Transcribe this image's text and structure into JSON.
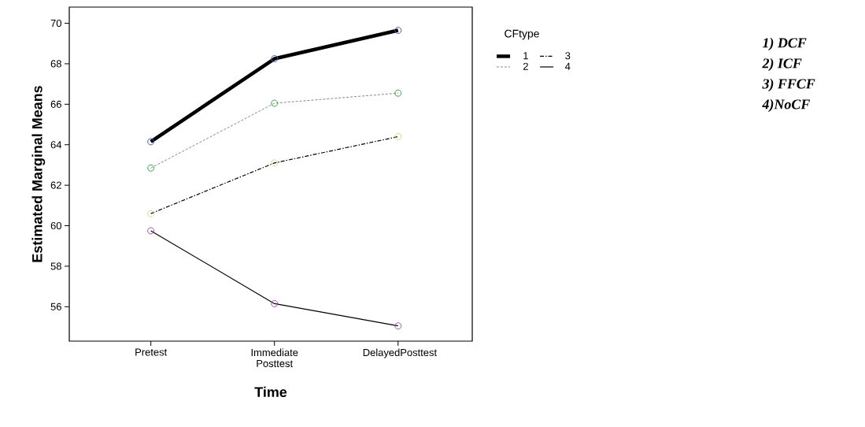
{
  "chart_data": {
    "type": "line",
    "xlabel": "Time",
    "ylabel": "Estimated Marginal Means",
    "legend_title": "CFtype",
    "legend": "top right",
    "marker": "circle",
    "categories": [
      "Pretest",
      "Immediate Posttest",
      "DelayedPosttest"
    ],
    "ylim": [
      54.3,
      70.8
    ],
    "yticks": [
      56,
      58,
      60,
      62,
      64,
      66,
      68,
      70
    ],
    "series": [
      {
        "name": "1",
        "color": "#000000",
        "colors": [
          "#4a5aa8",
          "#4a5aa8",
          "#4a5aa8"
        ],
        "line_style": "solid",
        "values": [
          64.15,
          68.25,
          69.65
        ]
      },
      {
        "name": "2",
        "color": "#888888",
        "colors": [
          "#3aa04a",
          "#3aa04a",
          "#3aa04a"
        ],
        "line_style": "dashed",
        "values": [
          62.85,
          66.05,
          66.55
        ]
      },
      {
        "name": "3",
        "color": "#000000",
        "colors": [
          "#d8d890",
          "#d8d890",
          "#d8d890"
        ],
        "line_style": "dashdot",
        "values": [
          60.6,
          63.1,
          64.4
        ]
      },
      {
        "name": "4",
        "color": "#000000",
        "colors": [
          "#a050b0",
          "#a050b0",
          "#a050b0"
        ],
        "line_style": "solid",
        "values": [
          59.75,
          56.15,
          55.05
        ]
      }
    ],
    "annotations": [
      "1) DCF",
      "2) ICF",
      "3) FFCF",
      "4)NoCF"
    ]
  }
}
